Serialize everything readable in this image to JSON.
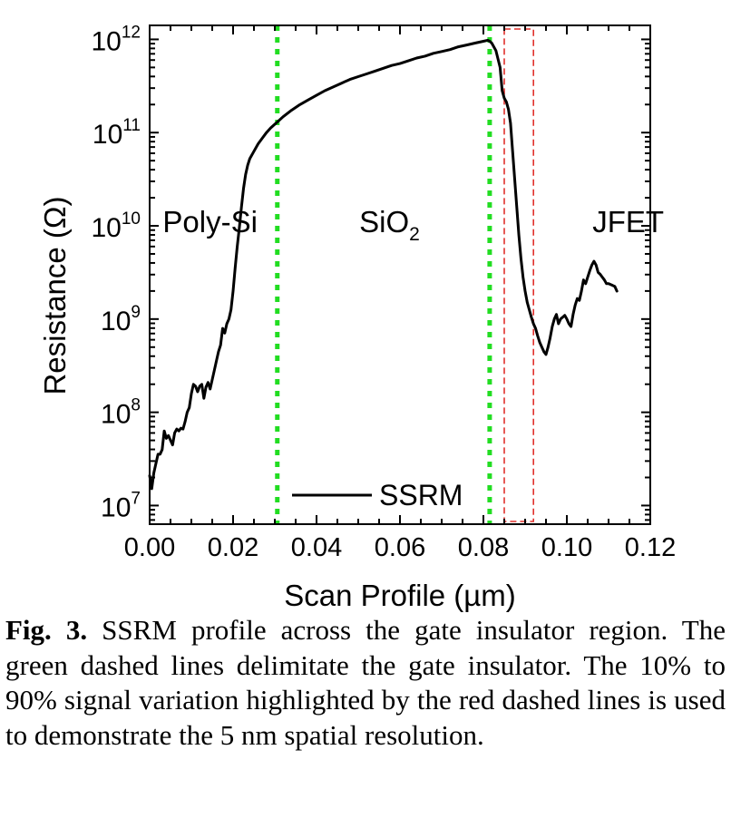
{
  "chart_data": {
    "type": "line",
    "title": "",
    "xlabel": "Scan Profile (µm)",
    "ylabel": "Resistance (Ω)",
    "xlim": [
      0,
      0.12
    ],
    "ylim_log10": [
      6.8,
      12.15
    ],
    "yscale": "log",
    "x_ticks": [
      {
        "value": 0.0,
        "label": "0.00"
      },
      {
        "value": 0.02,
        "label": "0.02"
      },
      {
        "value": 0.04,
        "label": "0.04"
      },
      {
        "value": 0.06,
        "label": "0.06"
      },
      {
        "value": 0.08,
        "label": "0.08"
      },
      {
        "value": 0.1,
        "label": "0.10"
      },
      {
        "value": 0.12,
        "label": "0.12"
      }
    ],
    "y_ticks": [
      {
        "exp": 7,
        "base": "10",
        "sup": "7"
      },
      {
        "exp": 8,
        "base": "10",
        "sup": "8"
      },
      {
        "exp": 9,
        "base": "10",
        "sup": "9"
      },
      {
        "exp": 10,
        "base": "10",
        "sup": "10"
      },
      {
        "exp": 11,
        "base": "10",
        "sup": "11"
      },
      {
        "exp": 12,
        "base": "10",
        "sup": "12"
      }
    ],
    "regions": [
      {
        "label": "Poly-Si",
        "x": 0.0145,
        "log10": 10.05
      },
      {
        "label": "SiO",
        "sub": "2",
        "x": 0.0575,
        "log10": 10.05
      },
      {
        "label": "JFET",
        "x": 0.1147,
        "log10": 10.05
      }
    ],
    "green_lines": [
      0.0306,
      0.0815
    ],
    "red_box": {
      "x0": 0.085,
      "x1": 0.092
    },
    "legend": {
      "label": "SSRM"
    },
    "series": [
      {
        "name": "SSRM",
        "color": "#000000",
        "points": [
          [
            0.0,
            7.32
          ],
          [
            0.0005,
            7.18
          ],
          [
            0.001,
            7.35
          ],
          [
            0.0015,
            7.45
          ],
          [
            0.002,
            7.55
          ],
          [
            0.0025,
            7.55
          ],
          [
            0.003,
            7.6
          ],
          [
            0.0035,
            7.8
          ],
          [
            0.004,
            7.72
          ],
          [
            0.0045,
            7.75
          ],
          [
            0.005,
            7.7
          ],
          [
            0.0055,
            7.65
          ],
          [
            0.006,
            7.78
          ],
          [
            0.0065,
            7.82
          ],
          [
            0.007,
            7.8
          ],
          [
            0.0075,
            7.83
          ],
          [
            0.008,
            7.82
          ],
          [
            0.0085,
            7.9
          ],
          [
            0.009,
            8.0
          ],
          [
            0.0095,
            8.05
          ],
          [
            0.01,
            8.2
          ],
          [
            0.0105,
            8.3
          ],
          [
            0.011,
            8.28
          ],
          [
            0.0115,
            8.22
          ],
          [
            0.012,
            8.28
          ],
          [
            0.0125,
            8.3
          ],
          [
            0.013,
            8.15
          ],
          [
            0.0135,
            8.27
          ],
          [
            0.014,
            8.32
          ],
          [
            0.0145,
            8.25
          ],
          [
            0.015,
            8.35
          ],
          [
            0.0155,
            8.45
          ],
          [
            0.016,
            8.55
          ],
          [
            0.0165,
            8.65
          ],
          [
            0.017,
            8.72
          ],
          [
            0.0175,
            8.9
          ],
          [
            0.018,
            8.85
          ],
          [
            0.0185,
            8.95
          ],
          [
            0.019,
            9.0
          ],
          [
            0.0195,
            9.1
          ],
          [
            0.02,
            9.3
          ],
          [
            0.0205,
            9.55
          ],
          [
            0.021,
            9.78
          ],
          [
            0.0215,
            9.98
          ],
          [
            0.022,
            10.2
          ],
          [
            0.0225,
            10.4
          ],
          [
            0.023,
            10.55
          ],
          [
            0.0235,
            10.65
          ],
          [
            0.024,
            10.72
          ],
          [
            0.025,
            10.8
          ],
          [
            0.026,
            10.88
          ],
          [
            0.027,
            10.94
          ],
          [
            0.028,
            11.0
          ],
          [
            0.029,
            11.05
          ],
          [
            0.03,
            11.09
          ],
          [
            0.031,
            11.13
          ],
          [
            0.032,
            11.17
          ],
          [
            0.034,
            11.24
          ],
          [
            0.036,
            11.3
          ],
          [
            0.038,
            11.35
          ],
          [
            0.04,
            11.4
          ],
          [
            0.042,
            11.45
          ],
          [
            0.044,
            11.49
          ],
          [
            0.046,
            11.53
          ],
          [
            0.048,
            11.57
          ],
          [
            0.05,
            11.6
          ],
          [
            0.052,
            11.63
          ],
          [
            0.054,
            11.66
          ],
          [
            0.056,
            11.69
          ],
          [
            0.058,
            11.72
          ],
          [
            0.06,
            11.74
          ],
          [
            0.062,
            11.77
          ],
          [
            0.064,
            11.8
          ],
          [
            0.066,
            11.82
          ],
          [
            0.068,
            11.85
          ],
          [
            0.07,
            11.87
          ],
          [
            0.072,
            11.89
          ],
          [
            0.074,
            11.92
          ],
          [
            0.076,
            11.94
          ],
          [
            0.078,
            11.96
          ],
          [
            0.08,
            11.98
          ],
          [
            0.081,
            11.99
          ],
          [
            0.0815,
            11.98
          ],
          [
            0.082,
            11.96
          ],
          [
            0.083,
            11.88
          ],
          [
            0.084,
            11.7
          ],
          [
            0.0845,
            11.45
          ],
          [
            0.085,
            11.37
          ],
          [
            0.0855,
            11.33
          ],
          [
            0.086,
            11.25
          ],
          [
            0.0865,
            11.1
          ],
          [
            0.087,
            10.8
          ],
          [
            0.0875,
            10.5
          ],
          [
            0.088,
            10.2
          ],
          [
            0.0885,
            9.9
          ],
          [
            0.089,
            9.65
          ],
          [
            0.0895,
            9.45
          ],
          [
            0.09,
            9.3
          ],
          [
            0.0905,
            9.18
          ],
          [
            0.091,
            9.1
          ],
          [
            0.0915,
            9.02
          ],
          [
            0.092,
            8.95
          ],
          [
            0.0925,
            8.9
          ],
          [
            0.093,
            8.82
          ],
          [
            0.0935,
            8.75
          ],
          [
            0.094,
            8.7
          ],
          [
            0.0945,
            8.65
          ],
          [
            0.095,
            8.62
          ],
          [
            0.0955,
            8.7
          ],
          [
            0.096,
            8.8
          ],
          [
            0.0965,
            8.92
          ],
          [
            0.097,
            9.0
          ],
          [
            0.0975,
            9.05
          ],
          [
            0.098,
            8.95
          ],
          [
            0.0985,
            9.0
          ],
          [
            0.099,
            9.02
          ],
          [
            0.0995,
            9.04
          ],
          [
            0.1,
            9.0
          ],
          [
            0.1005,
            8.95
          ],
          [
            0.101,
            8.92
          ],
          [
            0.1015,
            9.05
          ],
          [
            0.102,
            9.15
          ],
          [
            0.1025,
            9.22
          ],
          [
            0.103,
            9.2
          ],
          [
            0.1035,
            9.3
          ],
          [
            0.104,
            9.42
          ],
          [
            0.1045,
            9.38
          ],
          [
            0.105,
            9.45
          ],
          [
            0.1055,
            9.52
          ],
          [
            0.106,
            9.58
          ],
          [
            0.1065,
            9.62
          ],
          [
            0.107,
            9.58
          ],
          [
            0.1075,
            9.5
          ],
          [
            0.108,
            9.48
          ],
          [
            0.1085,
            9.45
          ],
          [
            0.109,
            9.42
          ],
          [
            0.1095,
            9.38
          ],
          [
            0.11,
            9.38
          ],
          [
            0.1105,
            9.37
          ],
          [
            0.111,
            9.36
          ],
          [
            0.1115,
            9.35
          ],
          [
            0.112,
            9.3
          ]
        ]
      }
    ]
  },
  "caption": {
    "fig_label": "Fig. 3.",
    "text": " SSRM profile across the gate insulator region. The green dashed lines delimitate the gate insulator. The 10% to 90% signal variation highlighted by the red dashed lines is used to demonstrate the 5 nm spatial resolution."
  }
}
